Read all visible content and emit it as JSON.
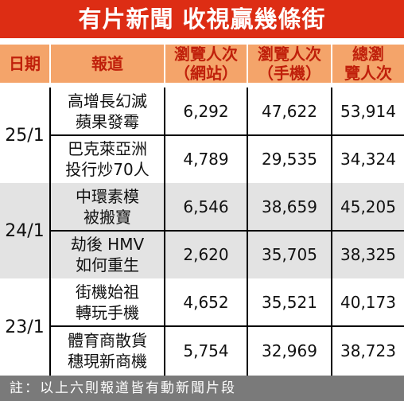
{
  "title": "有片新聞 收視贏幾條街",
  "headers": {
    "date": "日期",
    "story": "報道",
    "web_views": "瀏覽人次\n（網站）",
    "mobile_views": "瀏覽人次\n（手機）",
    "total_views": "總瀏\n覽人次"
  },
  "groups": [
    {
      "date": "25/1",
      "rows": [
        {
          "story": "高增長幻滅\n蘋果發霉",
          "web": "6,292",
          "mobile": "47,622",
          "total": "53,914"
        },
        {
          "story": "巴克萊亞洲\n投行炒70人",
          "web": "4,789",
          "mobile": "29,535",
          "total": "34,324"
        }
      ]
    },
    {
      "date": "24/1",
      "rows": [
        {
          "story": "中環素模\n被搬寶",
          "web": "6,546",
          "mobile": "38,659",
          "total": "45,205"
        },
        {
          "story": "劫後 HMV\n如何重生",
          "web": "2,620",
          "mobile": "35,705",
          "total": "38,325"
        }
      ]
    },
    {
      "date": "23/1",
      "rows": [
        {
          "story": "街機始祖\n轉玩手機",
          "web": "4,652",
          "mobile": "35,521",
          "total": "40,173"
        },
        {
          "story": "體育商散貨\n穗現新商機",
          "web": "5,754",
          "mobile": "32,969",
          "total": "38,723"
        }
      ]
    }
  ],
  "footnote": "註：以上六則報道皆有動新聞片段",
  "colors": {
    "title_bg": "#dd2d14",
    "header_bg": "#f4a46a",
    "header_text": "#c0200b",
    "band_gray": "#e3e3e3",
    "footnote_bg": "#7a7a7a"
  }
}
